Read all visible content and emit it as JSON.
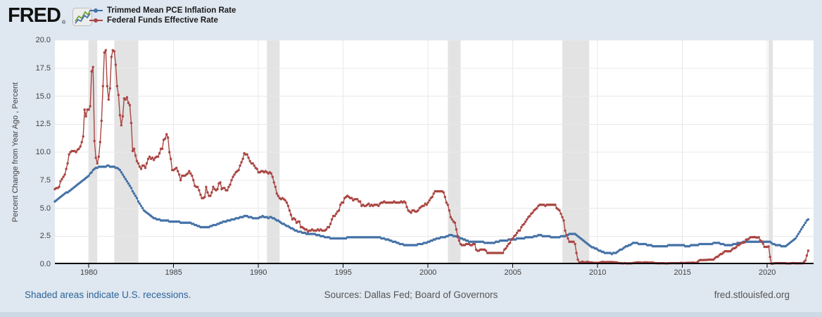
{
  "brand": {
    "logo_text": "FRED",
    "registered_mark": "®",
    "logo_icon": "line-chart-icon"
  },
  "legend": [
    {
      "label": "Trimmed Mean PCE Inflation Rate",
      "color": "#4572a7"
    },
    {
      "label": "Federal Funds Effective Rate",
      "color": "#aa4643"
    }
  ],
  "footer": {
    "recession_note": "Shaded areas indicate U.S. recessions.",
    "sources": "Sources: Dallas Fed; Board of Governors",
    "site": "fred.stlouisfed.org"
  },
  "colors": {
    "series_blue": "#4572a7",
    "series_red": "#aa4643",
    "recession_band": "#e3e3e3",
    "gridline": "#e8e8e8",
    "axis_line": "#000000",
    "background": "#dfe7f0",
    "plot_background": "#ffffff",
    "footer_strip": "#cdd9e5",
    "link": "#2d6499",
    "muted_text": "#555555"
  },
  "chart_data": {
    "type": "line",
    "title": "",
    "xlabel": "",
    "ylabel": "Percent Change from Year Ago , Percent",
    "ylim": [
      0,
      20
    ],
    "y_ticks": [
      0,
      2.5,
      5,
      7.5,
      10,
      12.5,
      15,
      17.5,
      20
    ],
    "x_ticks": [
      1980,
      1985,
      1990,
      1995,
      2000,
      2005,
      2010,
      2015,
      2020
    ],
    "x_domain": [
      1978.0,
      2022.73
    ],
    "x_start": 1978.0,
    "x_step_months": 1,
    "grid": true,
    "legend_position": "top-left",
    "recessions": [
      [
        1980.0,
        1980.5
      ],
      [
        1981.5,
        1982.92
      ],
      [
        1990.5,
        1991.25
      ],
      [
        2001.17,
        2001.92
      ],
      [
        2007.92,
        2009.5
      ],
      [
        2020.08,
        2020.33
      ]
    ],
    "series": [
      {
        "name": "Trimmed Mean PCE Inflation Rate",
        "color": "#4572a7",
        "values": [
          5.6,
          5.7,
          5.8,
          5.9,
          6.0,
          6.1,
          6.2,
          6.3,
          6.4,
          6.4,
          6.5,
          6.6,
          6.7,
          6.8,
          6.9,
          7.0,
          7.1,
          7.2,
          7.3,
          7.4,
          7.5,
          7.6,
          7.7,
          7.8,
          7.9,
          8.1,
          8.2,
          8.4,
          8.5,
          8.6,
          8.6,
          8.7,
          8.7,
          8.7,
          8.7,
          8.7,
          8.7,
          8.8,
          8.8,
          8.7,
          8.7,
          8.7,
          8.7,
          8.6,
          8.6,
          8.5,
          8.4,
          8.2,
          8.0,
          7.8,
          7.6,
          7.4,
          7.2,
          7.0,
          6.8,
          6.5,
          6.3,
          6.1,
          5.9,
          5.6,
          5.4,
          5.2,
          5.0,
          4.8,
          4.7,
          4.6,
          4.5,
          4.4,
          4.3,
          4.2,
          4.1,
          4.1,
          4.0,
          4.0,
          4.0,
          3.9,
          3.9,
          3.9,
          3.9,
          3.9,
          3.9,
          3.8,
          3.8,
          3.8,
          3.8,
          3.8,
          3.8,
          3.8,
          3.8,
          3.7,
          3.7,
          3.7,
          3.7,
          3.7,
          3.7,
          3.7,
          3.7,
          3.6,
          3.6,
          3.5,
          3.5,
          3.4,
          3.4,
          3.3,
          3.3,
          3.3,
          3.3,
          3.3,
          3.3,
          3.3,
          3.4,
          3.4,
          3.5,
          3.5,
          3.5,
          3.6,
          3.6,
          3.7,
          3.7,
          3.8,
          3.8,
          3.8,
          3.9,
          3.9,
          3.9,
          4.0,
          4.0,
          4.0,
          4.1,
          4.1,
          4.1,
          4.2,
          4.2,
          4.2,
          4.3,
          4.3,
          4.3,
          4.2,
          4.2,
          4.2,
          4.1,
          4.1,
          4.1,
          4.1,
          4.1,
          4.2,
          4.2,
          4.3,
          4.2,
          4.2,
          4.2,
          4.1,
          4.2,
          4.2,
          4.1,
          4.1,
          4.0,
          3.9,
          3.9,
          3.8,
          3.7,
          3.6,
          3.6,
          3.5,
          3.4,
          3.4,
          3.3,
          3.2,
          3.2,
          3.1,
          3.0,
          3.0,
          2.9,
          2.9,
          2.9,
          2.8,
          2.8,
          2.8,
          2.7,
          2.7,
          2.7,
          2.7,
          2.7,
          2.7,
          2.7,
          2.6,
          2.6,
          2.6,
          2.5,
          2.5,
          2.5,
          2.4,
          2.4,
          2.4,
          2.4,
          2.3,
          2.3,
          2.3,
          2.3,
          2.3,
          2.3,
          2.3,
          2.3,
          2.3,
          2.3,
          2.3,
          2.3,
          2.4,
          2.4,
          2.4,
          2.4,
          2.4,
          2.4,
          2.4,
          2.4,
          2.4,
          2.4,
          2.4,
          2.4,
          2.4,
          2.4,
          2.4,
          2.4,
          2.4,
          2.4,
          2.4,
          2.4,
          2.4,
          2.4,
          2.4,
          2.4,
          2.3,
          2.3,
          2.3,
          2.2,
          2.2,
          2.2,
          2.1,
          2.1,
          2.0,
          2.0,
          2.0,
          1.9,
          1.9,
          1.8,
          1.8,
          1.8,
          1.7,
          1.7,
          1.7,
          1.7,
          1.7,
          1.7,
          1.7,
          1.7,
          1.7,
          1.7,
          1.8,
          1.8,
          1.8,
          1.8,
          1.9,
          1.9,
          1.9,
          2.0,
          2.0,
          2.1,
          2.1,
          2.2,
          2.2,
          2.3,
          2.3,
          2.3,
          2.4,
          2.4,
          2.4,
          2.4,
          2.5,
          2.5,
          2.6,
          2.6,
          2.6,
          2.5,
          2.5,
          2.5,
          2.4,
          2.4,
          2.3,
          2.3,
          2.2,
          2.2,
          2.1,
          2.1,
          2.0,
          2.0,
          2.0,
          2.0,
          2.0,
          2.0,
          2.0,
          2.0,
          2.0,
          2.0,
          2.0,
          1.9,
          1.9,
          1.9,
          1.9,
          1.9,
          1.9,
          1.9,
          1.9,
          2.0,
          2.0,
          2.0,
          2.1,
          2.1,
          2.1,
          2.1,
          2.1,
          2.1,
          2.2,
          2.2,
          2.2,
          2.2,
          2.2,
          2.2,
          2.3,
          2.3,
          2.3,
          2.3,
          2.3,
          2.3,
          2.4,
          2.4,
          2.4,
          2.4,
          2.4,
          2.4,
          2.5,
          2.5,
          2.5,
          2.6,
          2.6,
          2.6,
          2.5,
          2.5,
          2.5,
          2.5,
          2.5,
          2.5,
          2.4,
          2.4,
          2.4,
          2.4,
          2.4,
          2.4,
          2.4,
          2.5,
          2.5,
          2.5,
          2.5,
          2.6,
          2.6,
          2.7,
          2.7,
          2.7,
          2.7,
          2.7,
          2.6,
          2.5,
          2.4,
          2.3,
          2.2,
          2.1,
          2.0,
          1.9,
          1.8,
          1.7,
          1.6,
          1.5,
          1.5,
          1.4,
          1.4,
          1.3,
          1.2,
          1.2,
          1.1,
          1.1,
          1.0,
          1.0,
          1.0,
          1.0,
          1.0,
          0.9,
          1.0,
          1.0,
          1.0,
          1.1,
          1.2,
          1.3,
          1.3,
          1.4,
          1.5,
          1.6,
          1.6,
          1.7,
          1.7,
          1.8,
          1.9,
          1.9,
          1.9,
          1.9,
          1.8,
          1.8,
          1.8,
          1.8,
          1.8,
          1.8,
          1.7,
          1.7,
          1.7,
          1.7,
          1.6,
          1.6,
          1.6,
          1.6,
          1.6,
          1.6,
          1.6,
          1.6,
          1.6,
          1.6,
          1.6,
          1.7,
          1.7,
          1.7,
          1.7,
          1.7,
          1.7,
          1.7,
          1.7,
          1.7,
          1.7,
          1.7,
          1.7,
          1.6,
          1.6,
          1.6,
          1.6,
          1.7,
          1.7,
          1.7,
          1.7,
          1.7,
          1.7,
          1.8,
          1.8,
          1.8,
          1.8,
          1.8,
          1.8,
          1.8,
          1.8,
          1.8,
          1.8,
          1.9,
          1.9,
          1.9,
          1.9,
          1.9,
          1.8,
          1.8,
          1.8,
          1.7,
          1.7,
          1.7,
          1.7,
          1.7,
          1.7,
          1.8,
          1.8,
          1.8,
          1.9,
          1.9,
          1.9,
          1.9,
          2.0,
          2.0,
          2.0,
          2.0,
          2.0,
          2.0,
          2.0,
          2.0,
          2.0,
          2.0,
          2.0,
          2.0,
          2.0,
          2.0,
          2.0,
          2.0,
          2.0,
          2.0,
          2.0,
          2.0,
          1.9,
          1.8,
          1.8,
          1.7,
          1.7,
          1.7,
          1.7,
          1.6,
          1.6,
          1.6,
          1.6,
          1.7,
          1.8,
          1.9,
          2.0,
          2.1,
          2.2,
          2.3,
          2.5,
          2.7,
          2.9,
          3.1,
          3.3,
          3.5,
          3.7,
          3.9,
          4.0
        ]
      },
      {
        "name": "Federal Funds Effective Rate",
        "color": "#aa4643",
        "values": [
          6.7,
          6.8,
          6.8,
          6.9,
          7.4,
          7.6,
          7.8,
          8.0,
          8.5,
          9.0,
          9.8,
          10.0,
          10.1,
          10.1,
          10.1,
          10.0,
          10.2,
          10.3,
          10.5,
          10.9,
          11.4,
          13.8,
          13.2,
          13.8,
          13.8,
          14.1,
          17.2,
          17.6,
          11.0,
          9.5,
          9.0,
          9.6,
          10.9,
          12.8,
          15.9,
          18.9,
          19.1,
          15.9,
          14.7,
          15.7,
          18.5,
          19.1,
          19.0,
          17.8,
          15.9,
          15.1,
          13.3,
          12.4,
          13.2,
          14.8,
          14.7,
          14.9,
          14.4,
          14.2,
          12.6,
          10.1,
          10.3,
          9.7,
          9.2,
          9.0,
          8.7,
          8.5,
          8.8,
          8.8,
          8.6,
          9.0,
          9.4,
          9.6,
          9.4,
          9.5,
          9.3,
          9.5,
          9.6,
          9.6,
          9.9,
          10.3,
          10.3,
          11.1,
          11.2,
          11.6,
          11.3,
          10.0,
          9.4,
          8.4,
          8.4,
          8.5,
          8.6,
          8.3,
          8.0,
          7.5,
          7.9,
          7.9,
          7.9,
          8.0,
          8.1,
          8.3,
          8.1,
          7.9,
          7.5,
          7.0,
          6.9,
          6.9,
          6.6,
          6.2,
          5.9,
          5.9,
          6.0,
          6.9,
          6.4,
          6.1,
          6.1,
          6.4,
          6.9,
          6.7,
          6.6,
          6.7,
          7.2,
          7.3,
          6.7,
          6.8,
          6.8,
          6.6,
          6.6,
          6.9,
          7.1,
          7.5,
          7.8,
          8.0,
          8.2,
          8.3,
          8.4,
          8.8,
          9.1,
          9.4,
          9.9,
          9.8,
          9.8,
          9.5,
          9.2,
          9.0,
          9.0,
          8.8,
          8.6,
          8.5,
          8.2,
          8.2,
          8.3,
          8.3,
          8.2,
          8.3,
          8.2,
          8.1,
          8.2,
          8.1,
          7.8,
          7.3,
          6.9,
          6.3,
          6.1,
          5.9,
          5.8,
          5.9,
          5.8,
          5.7,
          5.5,
          5.2,
          4.8,
          4.4,
          4.0,
          4.1,
          4.0,
          3.7,
          3.8,
          3.8,
          3.3,
          3.3,
          3.2,
          3.1,
          3.1,
          2.9,
          3.0,
          3.0,
          3.1,
          3.0,
          3.0,
          3.0,
          3.1,
          3.0,
          3.1,
          3.0,
          3.0,
          3.0,
          3.1,
          3.3,
          3.3,
          3.6,
          4.0,
          4.3,
          4.3,
          4.5,
          4.7,
          4.8,
          5.3,
          5.5,
          5.5,
          5.9,
          6.0,
          6.1,
          6.0,
          5.9,
          5.9,
          5.7,
          5.8,
          5.8,
          5.8,
          5.6,
          5.6,
          5.2,
          5.3,
          5.2,
          5.2,
          5.3,
          5.4,
          5.2,
          5.3,
          5.2,
          5.3,
          5.3,
          5.3,
          5.2,
          5.4,
          5.5,
          5.5,
          5.6,
          5.5,
          5.5,
          5.5,
          5.5,
          5.5,
          5.5,
          5.6,
          5.5,
          5.5,
          5.5,
          5.5,
          5.6,
          5.5,
          5.6,
          5.5,
          5.1,
          4.8,
          4.7,
          4.6,
          4.8,
          4.8,
          4.7,
          4.7,
          4.8,
          5.0,
          5.1,
          5.2,
          5.2,
          5.4,
          5.3,
          5.5,
          5.7,
          5.9,
          6.0,
          6.3,
          6.5,
          6.5,
          6.5,
          6.5,
          6.5,
          6.5,
          6.4,
          6.0,
          5.5,
          5.3,
          4.8,
          4.2,
          4.0,
          3.8,
          3.7,
          3.1,
          2.5,
          2.1,
          1.8,
          1.7,
          1.7,
          1.7,
          1.8,
          1.8,
          1.8,
          1.7,
          1.7,
          1.8,
          1.8,
          1.3,
          1.2,
          1.2,
          1.3,
          1.3,
          1.3,
          1.3,
          1.2,
          1.0,
          1.0,
          1.0,
          1.0,
          1.0,
          1.0,
          1.0,
          1.0,
          1.0,
          1.0,
          1.0,
          1.0,
          1.3,
          1.4,
          1.6,
          1.8,
          1.9,
          2.2,
          2.3,
          2.5,
          2.6,
          2.8,
          3.0,
          3.0,
          3.3,
          3.5,
          3.6,
          3.8,
          4.0,
          4.2,
          4.3,
          4.5,
          4.6,
          4.8,
          4.9,
          5.0,
          5.2,
          5.3,
          5.3,
          5.3,
          5.3,
          5.2,
          5.3,
          5.3,
          5.3,
          5.3,
          5.3,
          5.3,
          5.3,
          5.0,
          4.9,
          4.8,
          4.5,
          4.2,
          3.9,
          3.0,
          2.6,
          2.3,
          2.0,
          2.0,
          2.0,
          2.0,
          1.8,
          1.0,
          0.4,
          0.16,
          0.15,
          0.22,
          0.18,
          0.15,
          0.18,
          0.21,
          0.16,
          0.16,
          0.15,
          0.12,
          0.12,
          0.12,
          0.11,
          0.13,
          0.16,
          0.2,
          0.2,
          0.18,
          0.18,
          0.19,
          0.19,
          0.19,
          0.19,
          0.18,
          0.17,
          0.16,
          0.14,
          0.1,
          0.09,
          0.09,
          0.07,
          0.1,
          0.08,
          0.07,
          0.08,
          0.07,
          0.08,
          0.1,
          0.13,
          0.14,
          0.16,
          0.16,
          0.16,
          0.13,
          0.14,
          0.16,
          0.16,
          0.16,
          0.14,
          0.15,
          0.14,
          0.15,
          0.11,
          0.09,
          0.09,
          0.08,
          0.08,
          0.09,
          0.08,
          0.09,
          0.07,
          0.07,
          0.08,
          0.09,
          0.09,
          0.1,
          0.09,
          0.09,
          0.09,
          0.09,
          0.09,
          0.12,
          0.11,
          0.11,
          0.11,
          0.12,
          0.12,
          0.13,
          0.13,
          0.14,
          0.14,
          0.12,
          0.12,
          0.24,
          0.34,
          0.38,
          0.36,
          0.37,
          0.37,
          0.38,
          0.39,
          0.4,
          0.4,
          0.4,
          0.41,
          0.54,
          0.65,
          0.66,
          0.79,
          0.9,
          0.91,
          1.04,
          1.15,
          1.16,
          1.15,
          1.15,
          1.16,
          1.3,
          1.41,
          1.42,
          1.51,
          1.69,
          1.7,
          1.82,
          1.91,
          1.91,
          1.95,
          2.19,
          2.2,
          2.27,
          2.4,
          2.4,
          2.41,
          2.42,
          2.39,
          2.38,
          2.4,
          2.13,
          2.04,
          1.83,
          1.55,
          1.55,
          1.55,
          1.58,
          0.65,
          0.05,
          0.05,
          0.08,
          0.09,
          0.1,
          0.09,
          0.09,
          0.09,
          0.09,
          0.09,
          0.08,
          0.07,
          0.07,
          0.06,
          0.08,
          0.1,
          0.09,
          0.08,
          0.08,
          0.08,
          0.08,
          0.08,
          0.08,
          0.2,
          0.33,
          0.77,
          1.21
        ]
      }
    ]
  }
}
